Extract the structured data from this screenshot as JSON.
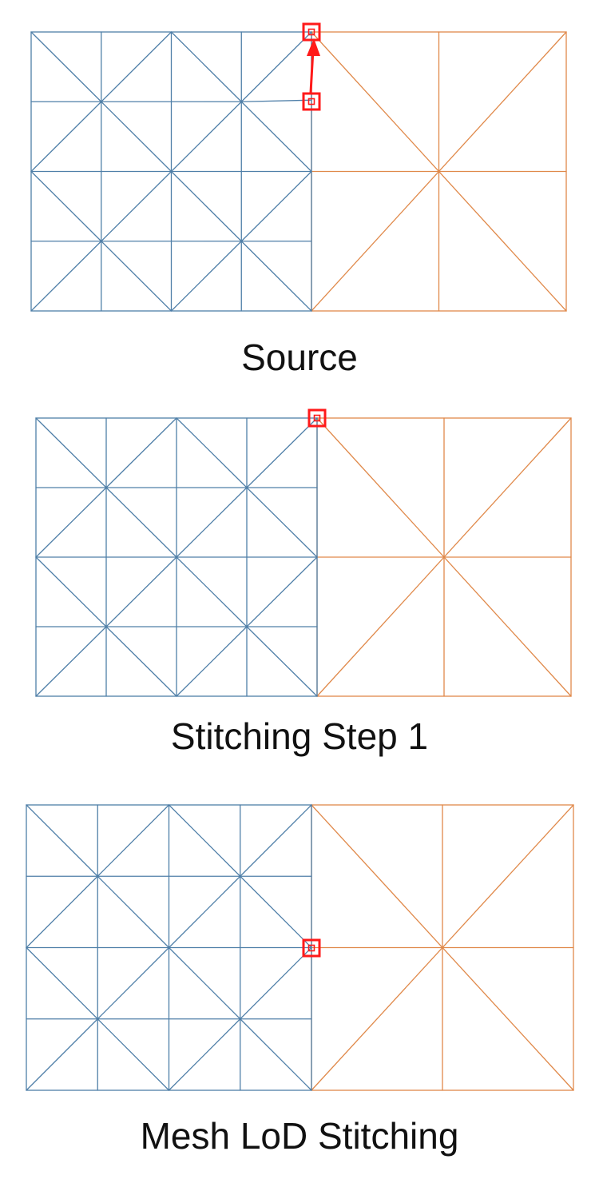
{
  "colors": {
    "fine_mesh": "#4f7fa8",
    "coarse_mesh": "#e0894a",
    "highlight": "#ff1a1a",
    "text": "#111111",
    "background": "#ffffff"
  },
  "panels": [
    {
      "caption": "Source",
      "highlight_markers": [
        "seam-corner-vertex",
        "seam-t-junction-vertex"
      ],
      "arrow": "t-junction-to-corner"
    },
    {
      "caption": "Stitching Step 1",
      "highlight_markers": [
        "seam-corner-vertex"
      ]
    },
    {
      "caption": "Mesh LoD Stitching",
      "highlight_markers": [
        "seam-mid-vertex"
      ]
    }
  ]
}
